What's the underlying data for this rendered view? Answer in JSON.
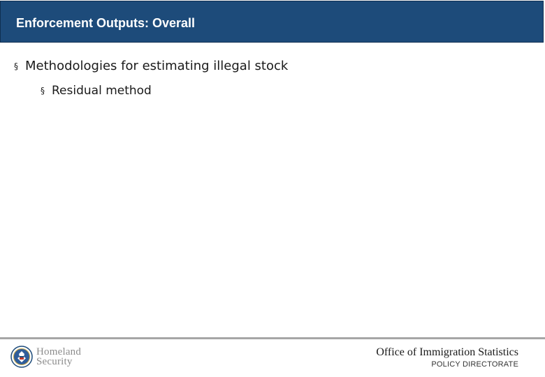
{
  "header": {
    "title": "Enforcement Outputs: Overall"
  },
  "content": {
    "bullets": [
      {
        "text": "Methodologies for estimating illegal stock",
        "sub_bullets": [
          {
            "text": "Residual method"
          }
        ]
      }
    ]
  },
  "footer": {
    "logo": {
      "icon": "dhs-seal-icon",
      "line1": "Homeland",
      "line2": "Security"
    },
    "office": "Office of Immigration Statistics",
    "directorate": "POLICY DIRECTORATE"
  },
  "colors": {
    "title_bar": "#1d4b7a",
    "title_text": "#ffffff",
    "footer_rule": "#a6a6a6"
  }
}
